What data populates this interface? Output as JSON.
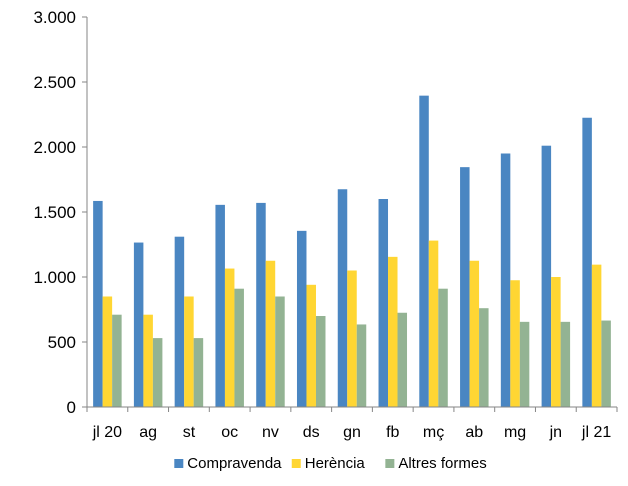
{
  "chart_data": {
    "type": "bar",
    "title": "",
    "xlabel": "",
    "ylabel": "",
    "categories": [
      "jl 20",
      "ag",
      "st",
      "oc",
      "nv",
      "ds",
      "gn",
      "fb",
      "mç",
      "ab",
      "mg",
      "jn",
      "jl 21"
    ],
    "ylim": [
      0,
      3000
    ],
    "yticks": [
      0,
      500,
      1000,
      1500,
      2000,
      2500,
      3000
    ],
    "ytick_labels": [
      "0",
      "500",
      "1.000",
      "1.500",
      "2.000",
      "2.500",
      "3.000"
    ],
    "grid": false,
    "legend_position": "bottom",
    "series": [
      {
        "name": "Compravenda",
        "color": "#4a86c2",
        "values": [
          1585,
          1265,
          1310,
          1555,
          1570,
          1355,
          1675,
          1600,
          2395,
          1845,
          1950,
          2010,
          2225
        ]
      },
      {
        "name": "Herència",
        "color": "#ffd633",
        "values": [
          850,
          710,
          850,
          1065,
          1125,
          940,
          1050,
          1155,
          1280,
          1125,
          975,
          1000,
          1095
        ]
      },
      {
        "name": "Altres formes",
        "color": "#93b393",
        "values": [
          710,
          530,
          530,
          910,
          850,
          700,
          635,
          725,
          910,
          760,
          655,
          655,
          665
        ]
      }
    ]
  }
}
